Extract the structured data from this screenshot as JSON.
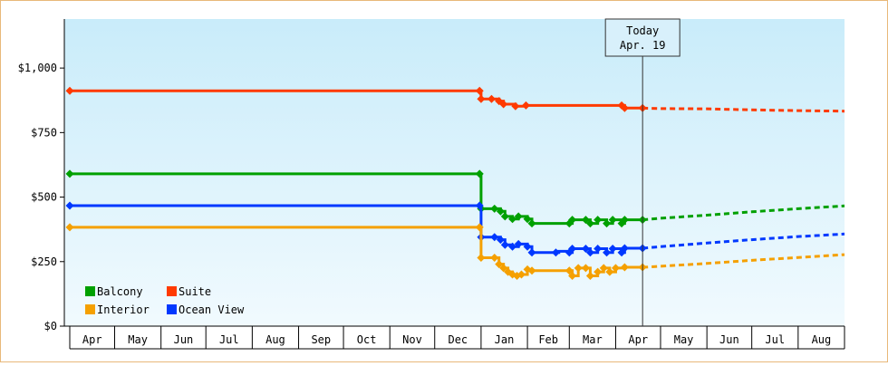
{
  "chart_data": {
    "type": "line",
    "y_tick_labels": [
      "$0",
      "$250",
      "$500",
      "$750",
      "$1,000"
    ],
    "y_tick_values": [
      0,
      250,
      500,
      750,
      1000
    ],
    "ylim": [
      0,
      1190
    ],
    "x_tick_labels": [
      "Apr",
      "May",
      "Jun",
      "Jul",
      "Aug",
      "Sep",
      "Oct",
      "Nov",
      "Dec",
      "Jan",
      "Feb",
      "Mar",
      "Apr",
      "May",
      "Jun",
      "Jul",
      "Aug"
    ],
    "x_start": "2024-04-01",
    "x_end": "2025-09-01",
    "today": {
      "date": "2025-04-19",
      "label_line1": "Today",
      "label_line2": "Apr. 19"
    },
    "grid": false,
    "legend_position": "bottom-left",
    "series": [
      {
        "name": "Suite",
        "color": "#ff3a00",
        "history": [
          [
            "2024-04-01",
            912
          ],
          [
            "2024-12-31",
            912
          ],
          [
            "2025-01-01",
            880
          ],
          [
            "2025-01-08",
            880
          ],
          [
            "2025-01-13",
            872
          ],
          [
            "2025-01-16",
            860
          ],
          [
            "2025-01-24",
            852
          ],
          [
            "2025-01-31",
            855
          ],
          [
            "2025-04-05",
            855
          ],
          [
            "2025-04-07",
            845
          ],
          [
            "2025-04-19",
            845
          ]
        ],
        "markers": [
          [
            "2024-04-01",
            912
          ],
          [
            "2024-12-31",
            912
          ],
          [
            "2025-01-01",
            880
          ],
          [
            "2025-01-08",
            880
          ],
          [
            "2025-01-13",
            872
          ],
          [
            "2025-01-16",
            860
          ],
          [
            "2025-01-24",
            852
          ],
          [
            "2025-01-31",
            855
          ],
          [
            "2025-04-05",
            855
          ],
          [
            "2025-04-07",
            845
          ],
          [
            "2025-04-19",
            845
          ]
        ],
        "forecast": [
          [
            "2025-04-19",
            845
          ],
          [
            "2025-05-01",
            843
          ],
          [
            "2025-06-01",
            842
          ],
          [
            "2025-07-01",
            838
          ],
          [
            "2025-08-01",
            835
          ],
          [
            "2025-09-01",
            833
          ]
        ]
      },
      {
        "name": "Balcony",
        "color": "#00a000",
        "history": [
          [
            "2024-04-01",
            590
          ],
          [
            "2024-12-31",
            590
          ],
          [
            "2025-01-01",
            455
          ],
          [
            "2025-01-10",
            455
          ],
          [
            "2025-01-14",
            445
          ],
          [
            "2025-01-17",
            425
          ],
          [
            "2025-01-22",
            415
          ],
          [
            "2025-01-26",
            425
          ],
          [
            "2025-02-01",
            415
          ],
          [
            "2025-02-04",
            398
          ],
          [
            "2025-03-01",
            398
          ],
          [
            "2025-03-03",
            412
          ],
          [
            "2025-03-12",
            412
          ],
          [
            "2025-03-15",
            398
          ],
          [
            "2025-03-20",
            412
          ],
          [
            "2025-03-26",
            398
          ],
          [
            "2025-03-30",
            412
          ],
          [
            "2025-04-05",
            398
          ],
          [
            "2025-04-07",
            412
          ],
          [
            "2025-04-19",
            412
          ]
        ],
        "markers": [
          [
            "2024-04-01",
            590
          ],
          [
            "2024-12-31",
            590
          ],
          [
            "2025-01-01",
            455
          ],
          [
            "2025-01-10",
            455
          ],
          [
            "2025-01-14",
            445
          ],
          [
            "2025-01-17",
            425
          ],
          [
            "2025-01-22",
            415
          ],
          [
            "2025-01-26",
            425
          ],
          [
            "2025-02-01",
            415
          ],
          [
            "2025-02-04",
            398
          ],
          [
            "2025-03-01",
            398
          ],
          [
            "2025-03-03",
            412
          ],
          [
            "2025-03-12",
            412
          ],
          [
            "2025-03-15",
            398
          ],
          [
            "2025-03-20",
            412
          ],
          [
            "2025-03-26",
            398
          ],
          [
            "2025-03-30",
            412
          ],
          [
            "2025-04-05",
            398
          ],
          [
            "2025-04-07",
            412
          ],
          [
            "2025-04-19",
            412
          ]
        ],
        "forecast": [
          [
            "2025-04-19",
            412
          ],
          [
            "2025-05-01",
            418
          ],
          [
            "2025-06-01",
            430
          ],
          [
            "2025-07-01",
            443
          ],
          [
            "2025-08-01",
            455
          ],
          [
            "2025-09-01",
            466
          ]
        ]
      },
      {
        "name": "Ocean View",
        "color": "#0038ff",
        "history": [
          [
            "2024-04-01",
            467
          ],
          [
            "2024-12-31",
            467
          ],
          [
            "2025-01-01",
            345
          ],
          [
            "2025-01-10",
            345
          ],
          [
            "2025-01-14",
            335
          ],
          [
            "2025-01-17",
            315
          ],
          [
            "2025-01-22",
            308
          ],
          [
            "2025-01-26",
            318
          ],
          [
            "2025-02-01",
            308
          ],
          [
            "2025-02-04",
            285
          ],
          [
            "2025-02-20",
            285
          ],
          [
            "2025-02-22",
            290
          ],
          [
            "2025-03-01",
            285
          ],
          [
            "2025-03-03",
            300
          ],
          [
            "2025-03-12",
            300
          ],
          [
            "2025-03-15",
            285
          ],
          [
            "2025-03-20",
            300
          ],
          [
            "2025-03-26",
            285
          ],
          [
            "2025-03-30",
            300
          ],
          [
            "2025-04-05",
            285
          ],
          [
            "2025-04-07",
            302
          ],
          [
            "2025-04-19",
            302
          ]
        ],
        "markers": [
          [
            "2024-04-01",
            467
          ],
          [
            "2024-12-31",
            467
          ],
          [
            "2025-01-01",
            345
          ],
          [
            "2025-01-10",
            345
          ],
          [
            "2025-01-14",
            335
          ],
          [
            "2025-01-17",
            315
          ],
          [
            "2025-01-22",
            308
          ],
          [
            "2025-01-26",
            318
          ],
          [
            "2025-02-01",
            308
          ],
          [
            "2025-02-04",
            285
          ],
          [
            "2025-02-20",
            285
          ],
          [
            "2025-03-01",
            285
          ],
          [
            "2025-03-03",
            300
          ],
          [
            "2025-03-12",
            300
          ],
          [
            "2025-03-15",
            285
          ],
          [
            "2025-03-20",
            300
          ],
          [
            "2025-03-26",
            285
          ],
          [
            "2025-03-30",
            300
          ],
          [
            "2025-04-05",
            285
          ],
          [
            "2025-04-07",
            302
          ],
          [
            "2025-04-19",
            302
          ]
        ],
        "forecast": [
          [
            "2025-04-19",
            302
          ],
          [
            "2025-05-01",
            308
          ],
          [
            "2025-06-01",
            322
          ],
          [
            "2025-07-01",
            335
          ],
          [
            "2025-08-01",
            347
          ],
          [
            "2025-09-01",
            357
          ]
        ]
      },
      {
        "name": "Interior",
        "color": "#f5a000",
        "history": [
          [
            "2024-04-01",
            383
          ],
          [
            "2024-12-31",
            383
          ],
          [
            "2025-01-01",
            265
          ],
          [
            "2025-01-10",
            265
          ],
          [
            "2025-01-13",
            240
          ],
          [
            "2025-01-16",
            225
          ],
          [
            "2025-01-19",
            210
          ],
          [
            "2025-01-22",
            200
          ],
          [
            "2025-01-25",
            195
          ],
          [
            "2025-01-28",
            200
          ],
          [
            "2025-02-01",
            220
          ],
          [
            "2025-02-04",
            215
          ],
          [
            "2025-03-01",
            215
          ],
          [
            "2025-03-03",
            195
          ],
          [
            "2025-03-07",
            225
          ],
          [
            "2025-03-12",
            225
          ],
          [
            "2025-03-15",
            195
          ],
          [
            "2025-03-20",
            210
          ],
          [
            "2025-03-24",
            225
          ],
          [
            "2025-03-28",
            210
          ],
          [
            "2025-04-01",
            225
          ],
          [
            "2025-04-07",
            228
          ],
          [
            "2025-04-19",
            228
          ]
        ],
        "markers": [
          [
            "2024-04-01",
            383
          ],
          [
            "2024-12-31",
            383
          ],
          [
            "2025-01-01",
            265
          ],
          [
            "2025-01-10",
            265
          ],
          [
            "2025-01-13",
            240
          ],
          [
            "2025-01-16",
            225
          ],
          [
            "2025-01-19",
            210
          ],
          [
            "2025-01-22",
            200
          ],
          [
            "2025-01-25",
            195
          ],
          [
            "2025-01-28",
            200
          ],
          [
            "2025-02-01",
            220
          ],
          [
            "2025-02-04",
            215
          ],
          [
            "2025-03-01",
            215
          ],
          [
            "2025-03-03",
            195
          ],
          [
            "2025-03-07",
            225
          ],
          [
            "2025-03-12",
            225
          ],
          [
            "2025-03-15",
            195
          ],
          [
            "2025-03-20",
            210
          ],
          [
            "2025-03-24",
            225
          ],
          [
            "2025-03-28",
            210
          ],
          [
            "2025-04-01",
            225
          ],
          [
            "2025-04-07",
            228
          ],
          [
            "2025-04-19",
            228
          ]
        ],
        "forecast": [
          [
            "2025-04-19",
            228
          ],
          [
            "2025-05-01",
            232
          ],
          [
            "2025-06-01",
            243
          ],
          [
            "2025-07-01",
            255
          ],
          [
            "2025-08-01",
            266
          ],
          [
            "2025-09-01",
            277
          ]
        ]
      }
    ],
    "legend": [
      {
        "name": "Balcony",
        "color": "#00a000"
      },
      {
        "name": "Suite",
        "color": "#ff3a00"
      },
      {
        "name": "Interior",
        "color": "#f5a000"
      },
      {
        "name": "Ocean View",
        "color": "#0038ff"
      }
    ]
  }
}
